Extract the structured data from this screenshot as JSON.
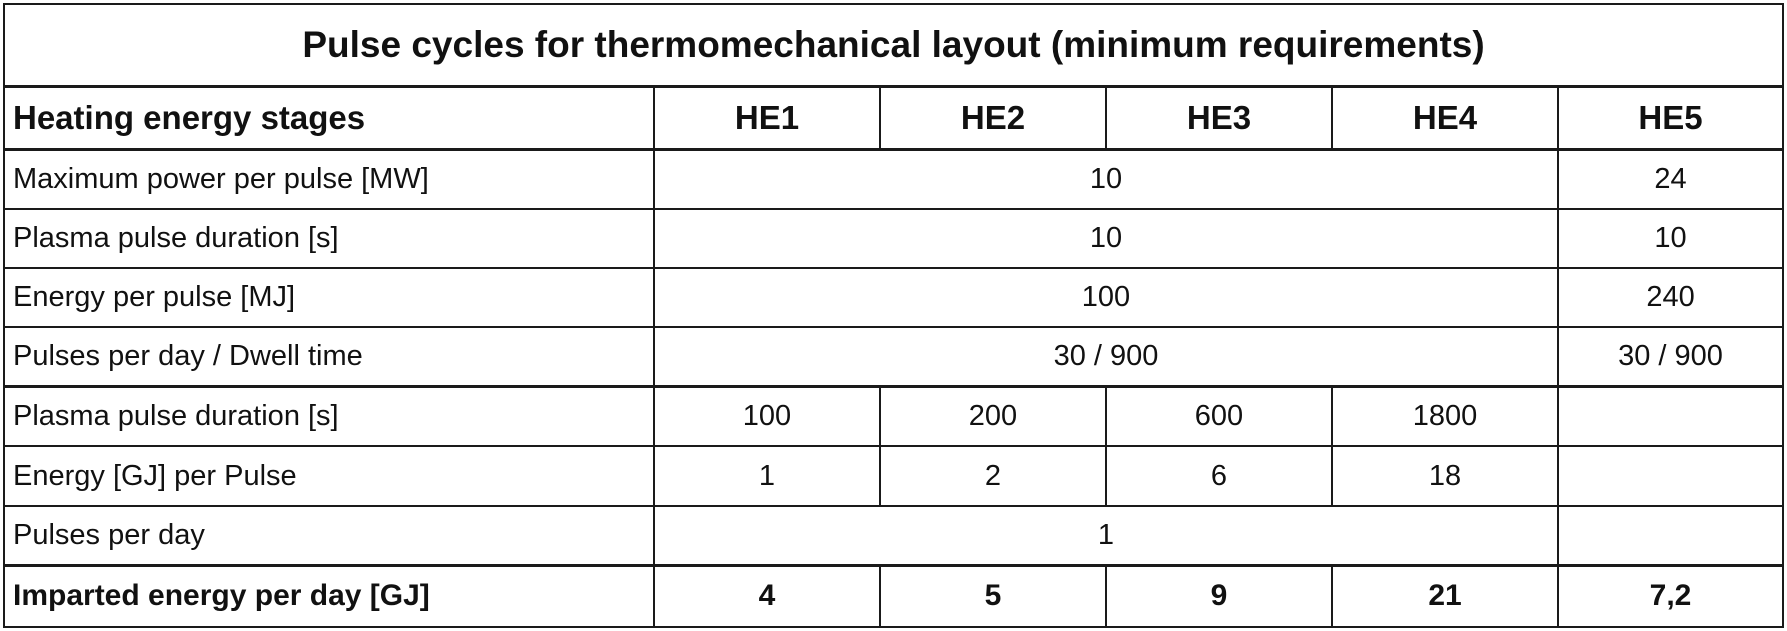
{
  "title": "Pulse cycles for thermomechanical layout (minimum requirements)",
  "header": {
    "label": "Heating energy stages",
    "stages": [
      "HE1",
      "HE2",
      "HE3",
      "HE4",
      "HE5"
    ]
  },
  "rows": [
    {
      "label": "Maximum power per pulse [MW]",
      "he1_4": "10",
      "he5": "24"
    },
    {
      "label": "Plasma pulse duration [s]",
      "he1_4": "10",
      "he5": "10"
    },
    {
      "label": "Energy per pulse [MJ]",
      "he1_4": "100",
      "he5": "240"
    },
    {
      "label": "Pulses per day / Dwell time",
      "he1_4": "30 / 900",
      "he5": "30 / 900"
    }
  ],
  "long_pulse": {
    "duration": {
      "label": "Plasma pulse duration [s]",
      "values": [
        "100",
        "200",
        "600",
        "1800"
      ]
    },
    "energy": {
      "label": "Energy [GJ] per Pulse",
      "values": [
        "1",
        "2",
        "6",
        "18"
      ]
    },
    "pulses_per_day": {
      "label": "Pulses per day",
      "value": "1"
    }
  },
  "total": {
    "label": "Imparted energy per day [GJ]",
    "values": [
      "4",
      "5",
      "9",
      "21",
      "7,2"
    ]
  }
}
